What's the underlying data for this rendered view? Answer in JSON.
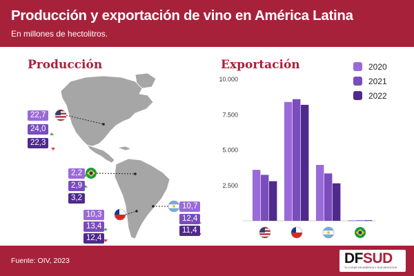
{
  "header": {
    "title": "Producción y exportación de vino en América Latina",
    "subtitle": "En millones de hectolitros."
  },
  "sections": {
    "production": "Producción",
    "export": "Exportación"
  },
  "colors": {
    "brand": "#a8213a",
    "y2020": "#9a6ad8",
    "y2021": "#7a4cbc",
    "y2022": "#4f2a8c",
    "map": "#a6a6a6"
  },
  "production_badges": {
    "usa": [
      "22,7",
      "24,0",
      "22,3"
    ],
    "brazil": [
      "2,2",
      "2,9",
      "3,2"
    ],
    "chile": [
      "10,3",
      "13,4",
      "12,4"
    ],
    "argentina": [
      "10,7",
      "12,4",
      "11,4"
    ]
  },
  "chart_data": {
    "type": "bar",
    "title": "Exportación",
    "categories": [
      "Estados Unidos",
      "Chile",
      "Argentina",
      "Brasil"
    ],
    "series": [
      {
        "name": "2020",
        "values": [
          3600,
          8400,
          3950,
          30
        ]
      },
      {
        "name": "2021",
        "values": [
          3250,
          8600,
          3350,
          40
        ]
      },
      {
        "name": "2022",
        "values": [
          2800,
          8200,
          2650,
          40
        ]
      }
    ],
    "ylim": [
      0,
      10000
    ],
    "yticks": [
      "10.000",
      "7.500",
      "5.000",
      "2.500"
    ],
    "grid": false,
    "legend": "top-right"
  },
  "footer": {
    "source": "Fuente: OIV, 2023"
  },
  "logo": {
    "text_a": "DF",
    "text_b": "SUD",
    "tagline": "TU LUGAR EN AMÉRICA Y SUS NEGOCIOS"
  }
}
